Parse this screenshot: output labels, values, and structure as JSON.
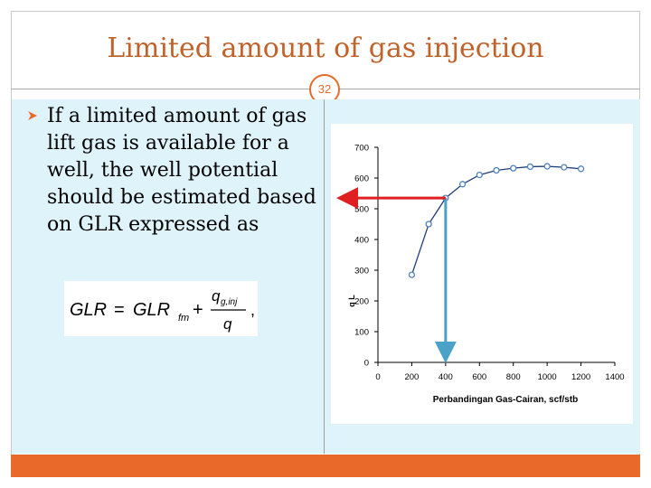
{
  "slide": {
    "title": "Limited amount of gas injection",
    "page_number": "32",
    "bullet": "If a limited amount of gas lift gas is available for a well, the well potential should be estimated based on GLR expressed as",
    "formula": {
      "lhs": "GLR",
      "base": "GLR",
      "base_subscript": "fm",
      "numerator": "q",
      "numerator_subscript": "g,inj",
      "denominator": "q"
    },
    "colors": {
      "title": "#c0622a",
      "accent_orange": "#e8692a",
      "panel_blue": "#dff3fb",
      "curve_marker": "#4f81bd",
      "red_arrow": "#e02020",
      "blue_arrow": "#4aa3c7"
    }
  },
  "chart_data": {
    "type": "line",
    "xlabel": "Perbandingan Gas-Cairan, scf/stb",
    "ylabel": "q L",
    "xlim": [
      0,
      1400
    ],
    "ylim": [
      0,
      700
    ],
    "x_ticks": [
      0,
      200,
      400,
      600,
      800,
      1000,
      1200,
      1400
    ],
    "y_ticks": [
      0,
      100,
      200,
      300,
      400,
      500,
      600,
      700
    ],
    "grid": false,
    "series": [
      {
        "x": [
          200,
          300,
          400,
          500,
          600,
          700,
          800,
          900,
          1000,
          1100,
          1200
        ],
        "values": [
          285,
          450,
          535,
          580,
          610,
          625,
          632,
          637,
          638,
          635,
          630
        ]
      }
    ],
    "annotations": [
      {
        "kind": "vertical-arrow",
        "x": 400,
        "from_y": 535,
        "to_y": 0,
        "color": "#4aa3c7"
      },
      {
        "kind": "horizontal-arrow",
        "y": 535,
        "from_x": 400,
        "to_x": 0,
        "color": "#e02020"
      }
    ]
  }
}
